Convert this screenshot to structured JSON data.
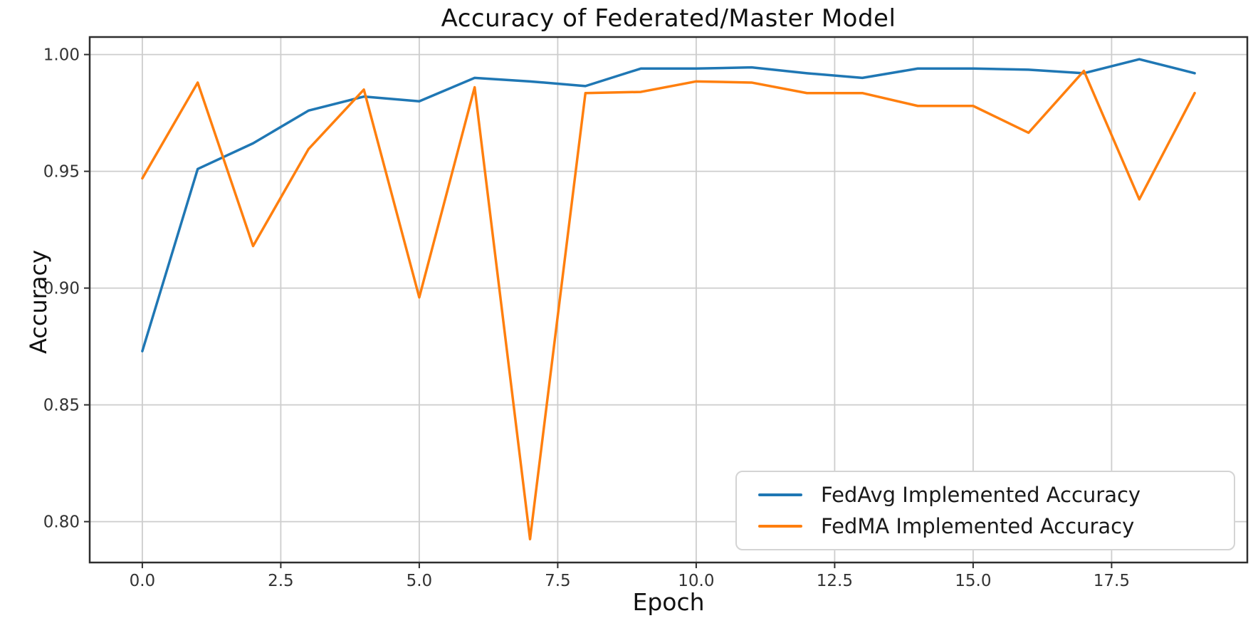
{
  "chart_data": {
    "type": "line",
    "title": "Accuracy of Federated/Master Model",
    "xlabel": "Epoch",
    "ylabel": "Accuracy",
    "x": [
      0,
      1,
      2,
      3,
      4,
      5,
      6,
      7,
      8,
      9,
      10,
      11,
      12,
      13,
      14,
      15,
      16,
      17,
      18,
      19
    ],
    "series": [
      {
        "name": "FedAvg Implemented Accuracy",
        "color": "#1f77b4",
        "values": [
          0.873,
          0.951,
          0.962,
          0.976,
          0.982,
          0.98,
          0.99,
          0.9885,
          0.9865,
          0.994,
          0.994,
          0.9945,
          0.992,
          0.99,
          0.994,
          0.994,
          0.9935,
          0.992,
          0.998,
          0.992
        ]
      },
      {
        "name": "FedMA Implemented Accuracy",
        "color": "#ff7f0e",
        "values": [
          0.947,
          0.988,
          0.918,
          0.9595,
          0.985,
          0.896,
          0.986,
          0.7925,
          0.9835,
          0.984,
          0.9885,
          0.988,
          0.9835,
          0.9835,
          0.978,
          0.978,
          0.9665,
          0.993,
          0.938,
          0.9835
        ]
      }
    ],
    "xticks": [
      0.0,
      2.5,
      5.0,
      7.5,
      10.0,
      12.5,
      15.0,
      17.5
    ],
    "xtick_labels": [
      "0.0",
      "2.5",
      "5.0",
      "7.5",
      "10.0",
      "12.5",
      "15.0",
      "17.5"
    ],
    "yticks": [
      0.8,
      0.85,
      0.9,
      0.95,
      1.0
    ],
    "ytick_labels": [
      "0.80",
      "0.85",
      "0.90",
      "0.95",
      "1.00"
    ],
    "xlim": [
      -0.95,
      19.95
    ],
    "ylim": [
      0.7825,
      1.0075
    ],
    "grid": true,
    "legend_position": "lower right",
    "colors": {
      "grid": "#cdcdcd",
      "spine": "#2e2e2e",
      "tick_text": "#333333",
      "background": "#ffffff"
    }
  }
}
